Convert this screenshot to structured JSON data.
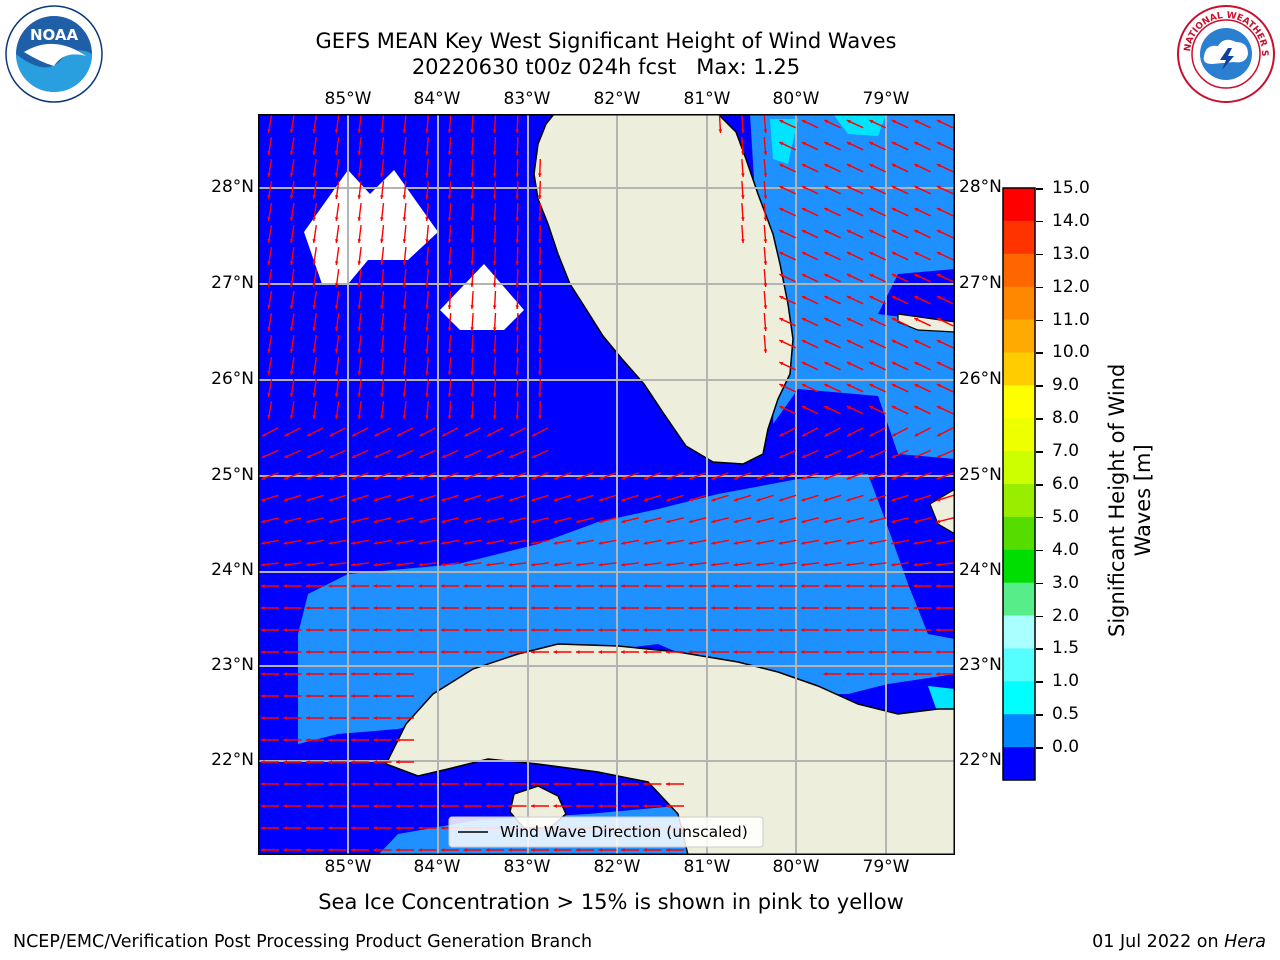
{
  "title_line1": "GEFS MEAN Key West Significant Height of Wind Waves",
  "title_line2": "20220630 t00z 024h fcst   Max: 1.25",
  "lon_ticks": [
    "85°W",
    "84°W",
    "83°W",
    "82°W",
    "81°W",
    "80°W",
    "79°W"
  ],
  "lat_ticks": [
    "28°N",
    "27°N",
    "26°N",
    "25°N",
    "24°N",
    "23°N",
    "22°N"
  ],
  "legend_label": "Wind Wave Direction (unscaled)",
  "colorbar": {
    "label_line1": "Significant Height of Wind",
    "label_line2": "Waves [m]",
    "ticks": [
      "15.0",
      "14.0",
      "13.0",
      "12.0",
      "11.0",
      "10.0",
      "9.0",
      "8.0",
      "7.0",
      "6.0",
      "5.0",
      "4.0",
      "3.0",
      "2.0",
      "1.5",
      "1.0",
      "0.5",
      "0.0"
    ],
    "colors": [
      "#ff0000",
      "#ff3300",
      "#ff6600",
      "#ff8800",
      "#ffaa00",
      "#ffcc00",
      "#ffff00",
      "#eeff00",
      "#ccff00",
      "#99ee00",
      "#55dd00",
      "#00dd00",
      "#55ee88",
      "#aaffff",
      "#55ffff",
      "#00ffff",
      "#0088ff",
      "#0000ff"
    ]
  },
  "colors": {
    "sea_low": "#0000ff",
    "sea_mid": "#1e90ff",
    "land": "#eeeedc",
    "arrow": "#ff0000",
    "grid": "#b4b4b4"
  },
  "bottom_note": "Sea Ice Concentration > 15% is shown in pink to yellow",
  "footer_left": "NCEP/EMC/Verification Post Processing Product Generation Branch",
  "footer_date": "01 Jul 2022 on ",
  "footer_machine": "Hera",
  "logo_left_text": "NOAA",
  "logo_right_text": "NATIONAL WEATHER SERVICE"
}
